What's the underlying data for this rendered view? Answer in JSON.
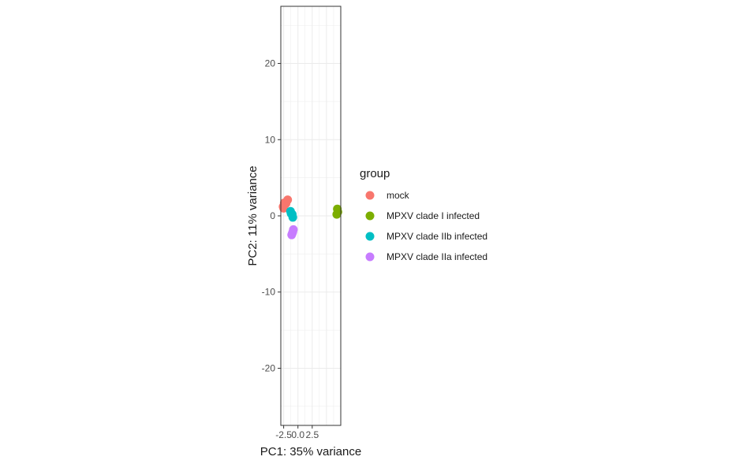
{
  "chart_data": {
    "type": "scatter",
    "xlabel": "PC1: 35% variance",
    "ylabel": "PC2: 11% variance",
    "xlim": [
      -3.0,
      7.5
    ],
    "ylim": [
      -27.5,
      27.5
    ],
    "x_ticks": [
      -2.5,
      0.0,
      2.5
    ],
    "x_tick_labels": [
      "-2.5",
      "0.0",
      "2.5"
    ],
    "y_ticks": [
      -20,
      -10,
      0,
      10,
      20
    ],
    "y_tick_labels": [
      "-20",
      "-10",
      "0",
      "10",
      "20"
    ],
    "grid": true,
    "legend": {
      "title": "group",
      "placement": "right"
    },
    "series": [
      {
        "name": "mock",
        "color": "#F8766D",
        "points": [
          {
            "x": -2.6,
            "y": 1.2
          },
          {
            "x": -2.4,
            "y": 1.7
          },
          {
            "x": -2.1,
            "y": 1.6
          },
          {
            "x": -1.8,
            "y": 2.1
          },
          {
            "x": -2.5,
            "y": 1.0
          }
        ]
      },
      {
        "name": "MPXV clade I infected",
        "color": "#7CAE00",
        "points": [
          {
            "x": 6.9,
            "y": 0.9
          },
          {
            "x": 6.8,
            "y": 0.2
          },
          {
            "x": 7.0,
            "y": 0.5
          }
        ]
      },
      {
        "name": "MPXV clade IIb infected",
        "color": "#00BFC4",
        "points": [
          {
            "x": -1.3,
            "y": 0.6
          },
          {
            "x": -1.0,
            "y": 0.2
          },
          {
            "x": -0.9,
            "y": -0.2
          },
          {
            "x": -1.2,
            "y": 0.3
          }
        ]
      },
      {
        "name": "MPXV clade IIa infected",
        "color": "#C77CFF",
        "points": [
          {
            "x": -0.8,
            "y": -1.8
          },
          {
            "x": -1.0,
            "y": -2.3
          },
          {
            "x": -0.9,
            "y": -2.1
          },
          {
            "x": -1.1,
            "y": -2.5
          }
        ]
      }
    ]
  }
}
